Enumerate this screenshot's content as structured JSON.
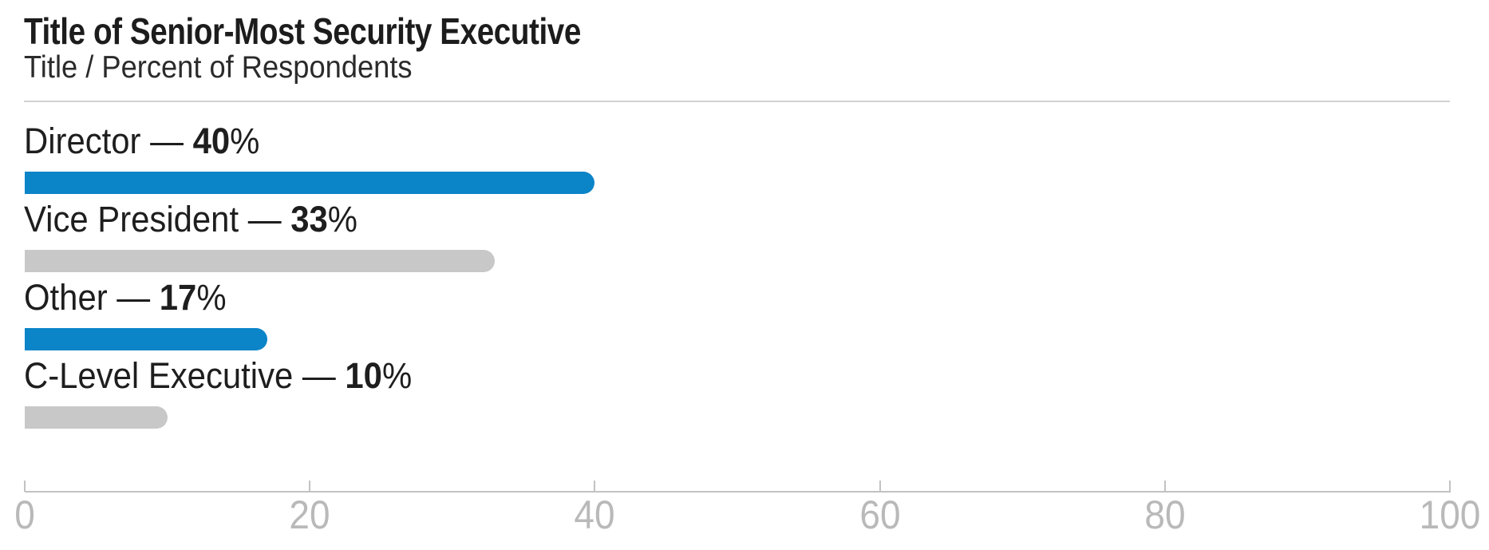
{
  "header": {
    "title": "Title of Senior-Most Security Executive",
    "subtitle": "Title / Percent of Respondents"
  },
  "colors": {
    "bar_blue": "#0b84c8",
    "bar_gray": "#c8c8c8",
    "label_text": "#1e1e1e",
    "axis_text": "#b9b9b9",
    "axis_line": "#c2c2c2",
    "divider_line": "#d2d2d2"
  },
  "chart_data": {
    "type": "bar",
    "orientation": "horizontal",
    "title": "Title of Senior-Most Security Executive",
    "subtitle": "Title / Percent of Respondents",
    "categories": [
      "Director",
      "Vice President",
      "Other",
      "C-Level Executive"
    ],
    "values": [
      40,
      33,
      17,
      10
    ],
    "bar_colors": [
      "#0b84c8",
      "#c8c8c8",
      "#0b84c8",
      "#c8c8c8"
    ],
    "label_separator": " — ",
    "value_suffix": "%",
    "xlabel": "",
    "ylabel": "",
    "xlim": [
      0,
      100
    ],
    "x_ticks": [
      0,
      20,
      40,
      60,
      80,
      100
    ],
    "grid": false,
    "legend": "none"
  }
}
